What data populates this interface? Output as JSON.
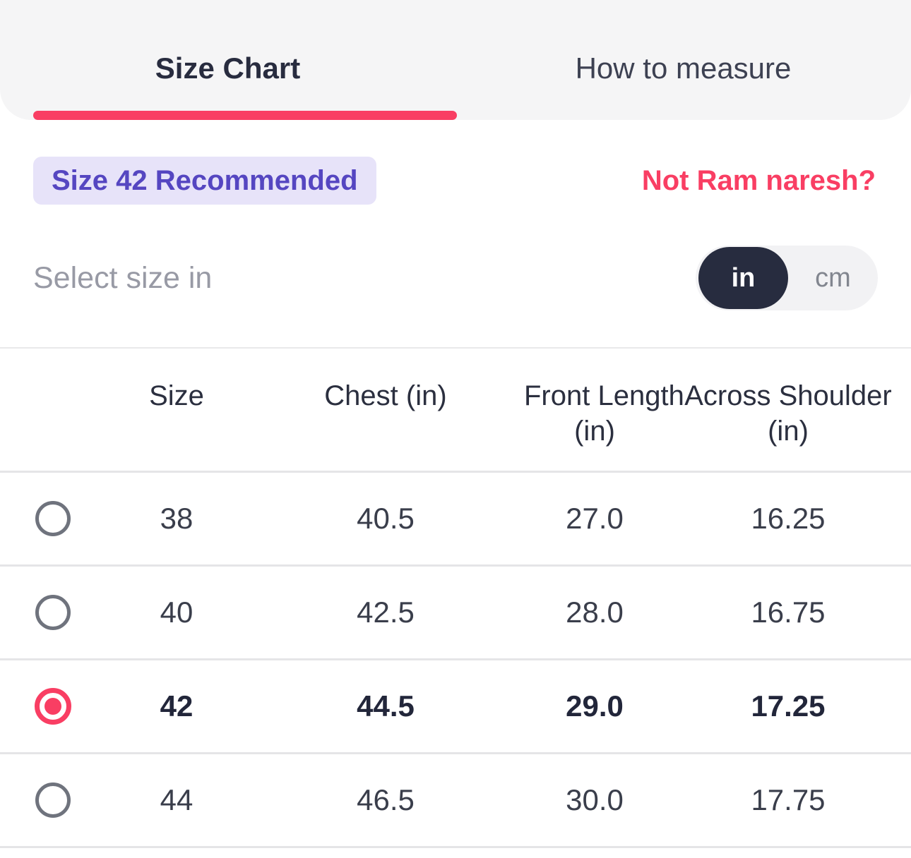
{
  "tabs": [
    {
      "label": "Size Chart",
      "active": true
    },
    {
      "label": "How to measure",
      "active": false
    }
  ],
  "recommendation": {
    "badge_label": "Size 42 Recommended",
    "not_user_link": "Not Ram naresh?"
  },
  "unit_selector": {
    "label": "Select size in",
    "options": [
      {
        "label": "in",
        "selected": true
      },
      {
        "label": "cm",
        "selected": false
      }
    ]
  },
  "size_table": {
    "columns": [
      {
        "label": "Size",
        "sub": ""
      },
      {
        "label": "Chest (in)",
        "sub": ""
      },
      {
        "label": "Front Length",
        "sub": "(in)"
      },
      {
        "label": "Across Shoulder",
        "sub": "(in)"
      }
    ],
    "rows": [
      {
        "size": "38",
        "chest": "40.5",
        "front_length": "27.0",
        "across_shoulder": "16.25",
        "selected": false
      },
      {
        "size": "40",
        "chest": "42.5",
        "front_length": "28.0",
        "across_shoulder": "16.75",
        "selected": false
      },
      {
        "size": "42",
        "chest": "44.5",
        "front_length": "29.0",
        "across_shoulder": "17.25",
        "selected": true
      },
      {
        "size": "44",
        "chest": "46.5",
        "front_length": "30.0",
        "across_shoulder": "17.75",
        "selected": false
      }
    ]
  },
  "colors": {
    "accent_pink": "#f93e63",
    "badge_purple_text": "#5546c1",
    "badge_purple_bg": "#e7e3f9",
    "dark_text": "#282c3f",
    "muted_text": "#989aa5",
    "toggle_dark_bg": "#272c3f",
    "tabbar_bg": "#f5f5f6",
    "divider": "#e5e5e7"
  }
}
